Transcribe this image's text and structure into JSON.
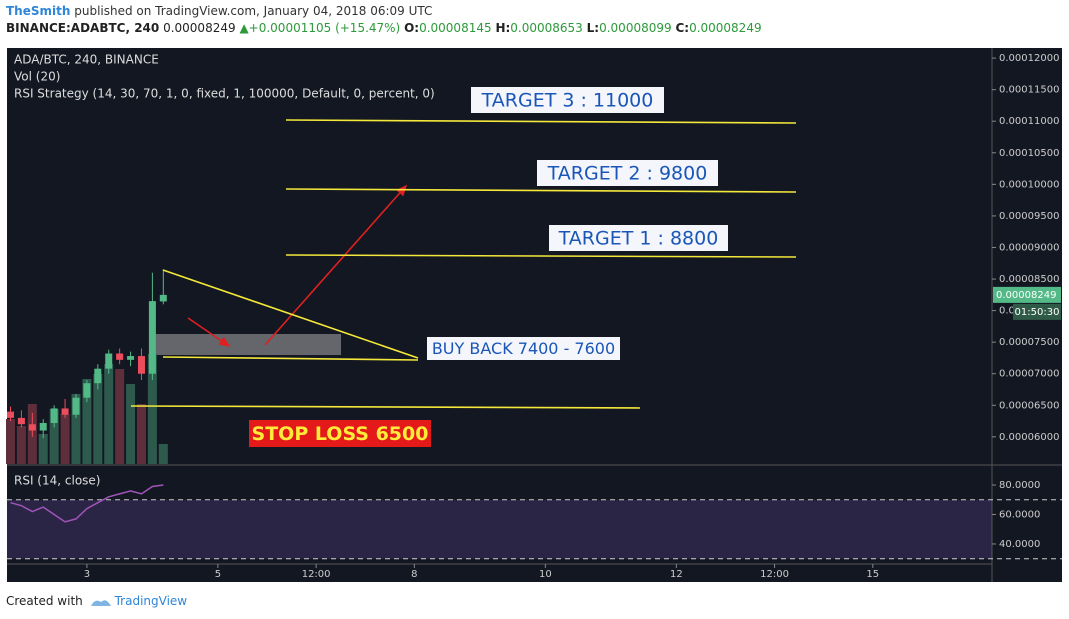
{
  "header": {
    "author": "TheSmith",
    "published": "published on TradingView.com, January 04, 2018 06:09 UTC",
    "symbol": "BINANCE:ADABTC, 240",
    "arrow": "▲",
    "change": "+0.00001105 (+15.47%)",
    "o": "O:",
    "h": "H:",
    "l": "L:",
    "c": "C:"
  },
  "chart_data": {
    "type": "candlestick",
    "legend": [
      "ADA/BTC, 240, BINANCE",
      "Vol (20)",
      "RSI Strategy (14, 30, 70, 1, 0, fixed, 1, 100000, Default, 0, percent, 0)"
    ],
    "x": [
      1.8333,
      2.0,
      2.1667,
      2.3333,
      2.5,
      2.6667,
      2.8333,
      3.0,
      3.1667,
      3.3333,
      3.5,
      3.6667,
      3.8333,
      4.0,
      4.1667
    ],
    "open": [
      6.4e-05,
      6.3e-05,
      6.2e-05,
      6.1e-05,
      6.22e-05,
      6.45e-05,
      6.35e-05,
      6.62e-05,
      6.85e-05,
      7.08e-05,
      7.32e-05,
      7.22e-05,
      7.28e-05,
      7e-05,
      8.145e-05
    ],
    "high": [
      6.48e-05,
      6.42e-05,
      6.38e-05,
      6.28e-05,
      6.5e-05,
      6.6e-05,
      6.68e-05,
      6.9e-05,
      7.15e-05,
      7.38e-05,
      7.4e-05,
      7.35e-05,
      7.4e-05,
      8.6e-05,
      8.653e-05
    ],
    "low": [
      6.25e-05,
      6.15e-05,
      6e-05,
      5.98e-05,
      6.15e-05,
      6.3e-05,
      6.3e-05,
      6.55e-05,
      6.75e-05,
      7e-05,
      7.15e-05,
      7.12e-05,
      6.9e-05,
      6.9e-05,
      8.099e-05
    ],
    "close": [
      6.3e-05,
      6.2e-05,
      6.1e-05,
      6.22e-05,
      6.45e-05,
      6.35e-05,
      6.62e-05,
      6.85e-05,
      7.08e-05,
      7.32e-05,
      7.22e-05,
      7.28e-05,
      7e-05,
      8.15e-05,
      8.249e-05
    ],
    "volume": [
      45,
      38,
      60,
      30,
      55,
      50,
      70,
      85,
      90,
      100,
      95,
      80,
      60,
      110,
      20
    ],
    "colors": {
      "up": "#53b987",
      "down": "#eb4d5c",
      "up_volume": "#2e5a4e",
      "down_volume": "#5e2f3b"
    },
    "xlim": [
      1.78,
      16.82
    ],
    "xticks": [
      {
        "value": 3,
        "label": "3"
      },
      {
        "value": 5,
        "label": "5"
      },
      {
        "value": 6.5,
        "label": "12:00"
      },
      {
        "value": 8,
        "label": "8"
      },
      {
        "value": 10,
        "label": "10"
      },
      {
        "value": 12,
        "label": "12"
      },
      {
        "value": 13.5,
        "label": "12:00"
      },
      {
        "value": 15,
        "label": "15"
      }
    ],
    "ylim": [
      5.57e-05,
      0.0001216
    ],
    "yticks": [
      {
        "value": 6e-05,
        "label": "0.00006000"
      },
      {
        "value": 6.5e-05,
        "label": "0.00006500"
      },
      {
        "value": 7e-05,
        "label": "0.00007000"
      },
      {
        "value": 7.5e-05,
        "label": "0.00007500"
      },
      {
        "value": 8e-05,
        "label": "0.00008000"
      },
      {
        "value": 8.5e-05,
        "label": "0.00008500"
      },
      {
        "value": 9e-05,
        "label": "0.00009000"
      },
      {
        "value": 9.5e-05,
        "label": "0.00009500"
      },
      {
        "value": 0.0001,
        "label": "0.00010000"
      },
      {
        "value": 0.000105,
        "label": "0.00010500"
      },
      {
        "value": 0.00011,
        "label": "0.00011000"
      },
      {
        "value": 0.000115,
        "label": "0.00011500"
      },
      {
        "value": 0.00012,
        "label": "0.00012000"
      }
    ],
    "countdown": "01:50:30",
    "rsi": {
      "name": "RSI (14, close)",
      "values": [
        68,
        66,
        62,
        65,
        60,
        55,
        57,
        64,
        68,
        72,
        74,
        76,
        74,
        79,
        80
      ],
      "color": "#a155b9",
      "ylim": [
        26.4,
        92.9
      ],
      "yticks": [
        {
          "value": 80,
          "label": "80.0000"
        },
        {
          "value": 60,
          "label": "60.0000"
        },
        {
          "value": 40,
          "label": "40.0000"
        }
      ],
      "band": [
        30,
        70
      ]
    },
    "annotations": [
      "TARGET 3 : 11000",
      "TARGET 2 : 9800",
      "TARGET 1 : 8800",
      "BUY BACK 7400 - 7600",
      "STOP LOSS 6500"
    ]
  },
  "footer": {
    "created": "Created with",
    "brand": "TradingView"
  }
}
